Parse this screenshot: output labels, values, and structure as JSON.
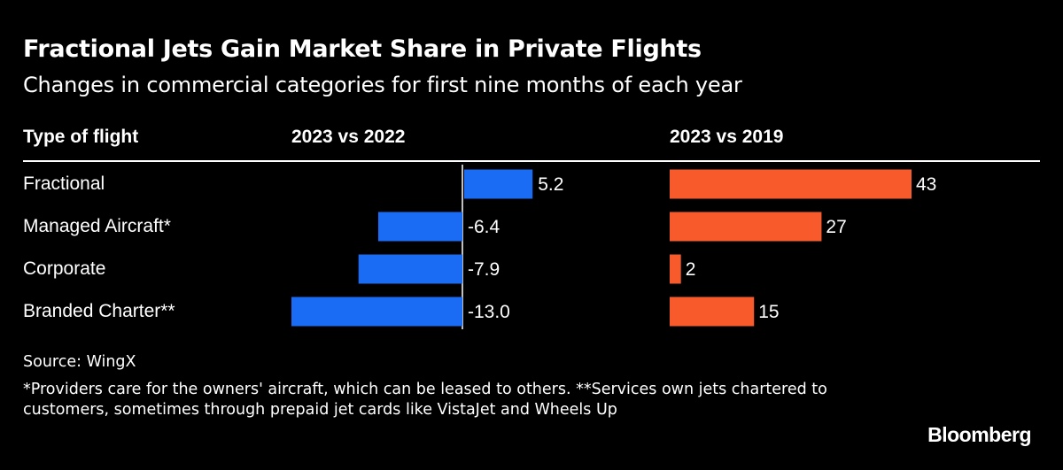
{
  "title": "Fractional Jets Gain Market Share in Private Flights",
  "subtitle": "Changes in commercial categories for first nine months of each year",
  "source": "Source: WingX",
  "note": "*Providers care for the owners' aircraft, which can be leased to others. **Services own jets chartered to customers, sometimes through prepaid jet cards like VistaJet and Wheels Up",
  "logo": "Bloomberg",
  "chart_data": {
    "type": "bar",
    "orientation": "horizontal",
    "row_header": "Type of flight",
    "categories": [
      "Fractional",
      "Managed Aircraft*",
      "Corporate",
      "Branded Charter**"
    ],
    "series": [
      {
        "name": "2023 vs 2022",
        "values": [
          5.2,
          -6.4,
          -7.9,
          -13.0
        ],
        "labels": [
          "5.2",
          "-6.4",
          "-7.9",
          "-13.0"
        ],
        "color": "#1a6cf5"
      },
      {
        "name": "2023 vs 2019",
        "values": [
          43,
          27,
          2,
          15
        ],
        "labels": [
          "43",
          "27",
          "2",
          "15"
        ],
        "color": "#f95a2c"
      }
    ],
    "grid": false,
    "legend": "none"
  }
}
